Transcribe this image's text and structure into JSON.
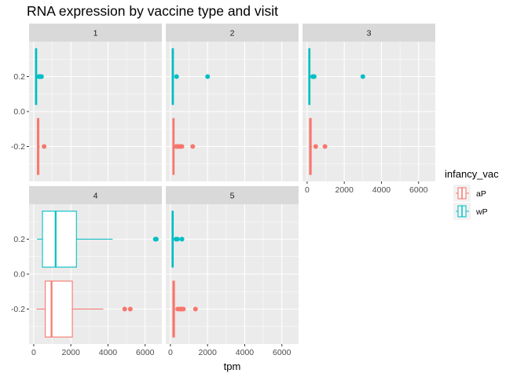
{
  "chart_data": {
    "type": "boxplot",
    "title": "RNA expression by vaccine type and visit",
    "xlabel": "tpm",
    "ylabel": "",
    "xlim": [
      -250,
      6900
    ],
    "ylim": [
      -0.4,
      0.4
    ],
    "x_ticks": [
      0,
      2000,
      4000,
      6000
    ],
    "x_tick_labels": [
      "0",
      "2000",
      "4000",
      "6000"
    ],
    "y_ticks": [
      0.2,
      0.0,
      -0.2
    ],
    "y_tick_labels": [
      "0.2",
      "0.0",
      "-0.2"
    ],
    "grid": true,
    "facet_by": "visit",
    "facets": [
      "1",
      "2",
      "3",
      "4",
      "5"
    ],
    "legend": {
      "title": "infancy_vac",
      "position": "right",
      "entries": [
        {
          "label": "aP",
          "color": "#F8766D"
        },
        {
          "label": "wP",
          "color": "#00BFC4"
        }
      ]
    },
    "panels": [
      {
        "facet": "1",
        "boxes": [
          {
            "group": "wP",
            "y": 0.2,
            "min": 80,
            "q1": 100,
            "median": 120,
            "q3": 160,
            "max": 230,
            "outliers": [
              280,
              340,
              390,
              420
            ]
          },
          {
            "group": "aP",
            "y": -0.2,
            "min": 170,
            "q1": 200,
            "median": 230,
            "q3": 280,
            "max": 330,
            "outliers": [
              560
            ]
          }
        ]
      },
      {
        "facet": "2",
        "boxes": [
          {
            "group": "wP",
            "y": 0.2,
            "min": 80,
            "q1": 100,
            "median": 120,
            "q3": 150,
            "max": 200,
            "outliers": [
              330,
              2000
            ]
          },
          {
            "group": "aP",
            "y": -0.2,
            "min": 100,
            "q1": 130,
            "median": 160,
            "q3": 200,
            "max": 250,
            "outliers": [
              310,
              390,
              450,
              540,
              620,
              1200
            ]
          }
        ]
      },
      {
        "facet": "3",
        "boxes": [
          {
            "group": "wP",
            "y": 0.2,
            "min": 60,
            "q1": 90,
            "median": 110,
            "q3": 140,
            "max": 200,
            "outliers": [
              300,
              380,
              3000
            ]
          },
          {
            "group": "aP",
            "y": -0.2,
            "min": 100,
            "q1": 130,
            "median": 170,
            "q3": 220,
            "max": 270,
            "outliers": [
              460,
              960
            ]
          }
        ]
      },
      {
        "facet": "4",
        "boxes": [
          {
            "group": "wP",
            "y": 0.2,
            "min": 180,
            "q1": 470,
            "median": 1180,
            "q3": 2300,
            "max": 4250,
            "outliers": [
              6550,
              6600
            ]
          },
          {
            "group": "aP",
            "y": -0.2,
            "min": 150,
            "q1": 620,
            "median": 960,
            "q3": 2080,
            "max": 3750,
            "outliers": [
              4900,
              5200
            ]
          }
        ]
      },
      {
        "facet": "5",
        "boxes": [
          {
            "group": "wP",
            "y": 0.2,
            "min": 60,
            "q1": 90,
            "median": 110,
            "q3": 150,
            "max": 220,
            "outliers": [
              300,
              380,
              620
            ]
          },
          {
            "group": "aP",
            "y": -0.2,
            "min": 100,
            "q1": 130,
            "median": 170,
            "q3": 220,
            "max": 280,
            "outliers": [
              400,
              520,
              600,
              700,
              1350
            ]
          }
        ]
      }
    ]
  }
}
